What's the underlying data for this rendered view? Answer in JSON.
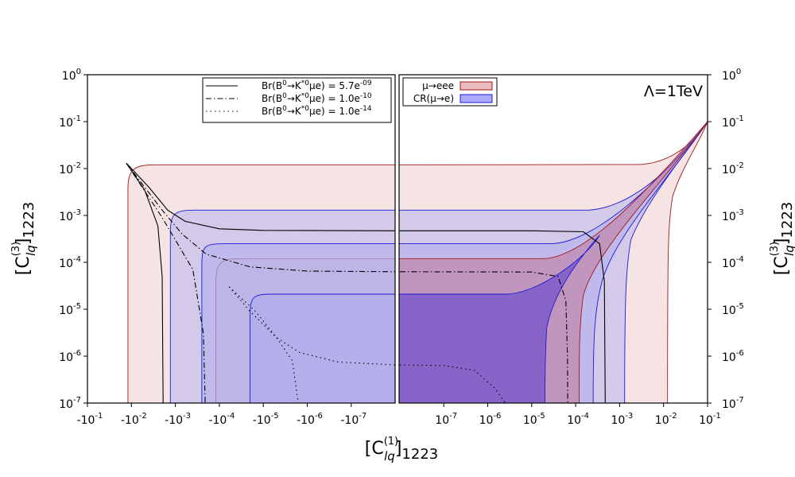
{
  "chart_data": {
    "type": "area",
    "annotation": "Λ=1TeV",
    "xlabel": {
      "main": "[C",
      "sup": "(1)",
      "sub": "lq",
      "tail": "]",
      "sub2": "1223"
    },
    "ylabel": {
      "main": "[C",
      "sup": "(3)",
      "sub": "lq",
      "tail": "]",
      "sub2": "1223"
    },
    "y_scale": "log",
    "ylim": [
      1e-07,
      1
    ],
    "x_scale": "symmetric-log (negative panel | positive panel)",
    "xlim_left_panel": [
      -0.1,
      -1e-08
    ],
    "xlim_right_panel": [
      1e-08,
      0.1
    ],
    "y_ticks": [
      {
        "base": "10",
        "exp": "0",
        "value": 1
      },
      {
        "base": "10",
        "exp": "-1",
        "value": 0.1
      },
      {
        "base": "10",
        "exp": "-2",
        "value": 0.01
      },
      {
        "base": "10",
        "exp": "-3",
        "value": 0.001
      },
      {
        "base": "10",
        "exp": "-4",
        "value": 0.0001
      },
      {
        "base": "10",
        "exp": "-5",
        "value": 1e-05
      },
      {
        "base": "10",
        "exp": "-6",
        "value": 1e-06
      },
      {
        "base": "10",
        "exp": "-7",
        "value": 1e-07
      }
    ],
    "x_ticks_left": [
      {
        "base": "-10",
        "exp": "-1",
        "value": -0.1
      },
      {
        "base": "-10",
        "exp": "-2",
        "value": -0.01
      },
      {
        "base": "-10",
        "exp": "-3",
        "value": -0.001
      },
      {
        "base": "-10",
        "exp": "-4",
        "value": -0.0001
      },
      {
        "base": "-10",
        "exp": "-5",
        "value": -1e-05
      },
      {
        "base": "-10",
        "exp": "-6",
        "value": -1e-06
      },
      {
        "base": "-10",
        "exp": "-7",
        "value": -1e-07
      }
    ],
    "x_ticks_right": [
      {
        "base": "10",
        "exp": "-7",
        "value": 1e-07
      },
      {
        "base": "10",
        "exp": "-6",
        "value": 1e-06
      },
      {
        "base": "10",
        "exp": "-5",
        "value": 1e-05
      },
      {
        "base": "10",
        "exp": "-4",
        "value": 0.0001
      },
      {
        "base": "10",
        "exp": "-3",
        "value": 0.001
      },
      {
        "base": "10",
        "exp": "-2",
        "value": 0.01
      },
      {
        "base": "10",
        "exp": "-1",
        "value": 0.1
      }
    ],
    "regions": [
      {
        "name": "μ→eee",
        "fill": "#e8bcbc",
        "stroke": "#a01818",
        "opacity": 0.4,
        "bands": [
          {
            "x_edge": 0.012,
            "y_plateau": 0.012,
            "corner_x": 0.007,
            "corner_y": 0.0095
          },
          {
            "x_edge": 0.00012,
            "y_plateau": 0.00012,
            "corner_x": 8e-05,
            "corner_y": 9e-05
          }
        ],
        "right_edge_points": [
          [
            0.0123,
            1e-07
          ],
          [
            0.013,
            0.0005
          ],
          [
            0.02,
            0.004
          ],
          [
            0.05,
            0.02
          ],
          [
            0.1,
            0.1
          ]
        ],
        "right_plateau_end": [
          [
            0.004,
            0.013
          ],
          [
            0.03,
            0.03
          ],
          [
            0.1,
            0.1
          ]
        ]
      },
      {
        "name": "CR(μ→e)",
        "fill": "#a8a8f0",
        "stroke": "#1a1ad8",
        "opacity": 0.45,
        "bands": [
          {
            "x_edge": 0.0013,
            "y_plateau": 0.0013,
            "corner_x": 0.0009,
            "corner_y": 0.0011
          },
          {
            "x_edge": 0.00025,
            "y_plateau": 0.00025,
            "corner_x": 0.0002,
            "corner_y": 0.00021
          },
          {
            "x_edge": 2e-05,
            "y_plateau": 2.1e-05,
            "corner_x": 1.6e-05,
            "corner_y": 1.6e-05
          }
        ]
      }
    ],
    "lines": [
      {
        "name": "Br(B⁰→K*⁰μe) = 5.7e⁻⁰⁹",
        "style": "solid",
        "left": [
          [
            -0.013,
            0.013
          ],
          [
            -0.004,
            0.004
          ],
          [
            -0.0015,
            0.0013
          ],
          [
            -0.0006,
            0.00075
          ],
          [
            -0.0001,
            0.00052
          ],
          [
            -1e-05,
            0.00048
          ],
          [
            -1e-08,
            0.00047
          ]
        ],
        "left_branch": [
          [
            -0.013,
            0.013
          ],
          [
            -0.005,
            0.0035
          ],
          [
            -0.0025,
            0.0006
          ],
          [
            -0.002,
            5e-05
          ],
          [
            -0.0019,
            1e-07
          ]
        ],
        "right": [
          [
            1e-08,
            0.00047
          ],
          [
            1e-05,
            0.00047
          ],
          [
            0.00015,
            0.00045
          ],
          [
            0.00035,
            0.00025
          ],
          [
            0.00045,
            4e-05
          ],
          [
            0.00047,
            1e-07
          ]
        ]
      },
      {
        "name": "Br(B⁰→K*⁰μe) = 1.0e⁻¹⁰",
        "style": "dashdot",
        "left": [
          [
            -0.013,
            0.013
          ],
          [
            -0.002,
            0.0013
          ],
          [
            -0.0007,
            0.0004
          ],
          [
            -0.0002,
            0.00015
          ],
          [
            -2e-05,
            8e-05
          ],
          [
            -1e-06,
            6.5e-05
          ],
          [
            -1e-08,
            6.3e-05
          ]
        ],
        "left_branch": [
          [
            -0.013,
            0.013
          ],
          [
            -0.002,
            0.0009
          ],
          [
            -0.0004,
            7e-05
          ],
          [
            -0.00023,
            3e-06
          ],
          [
            -0.00021,
            1e-07
          ]
        ],
        "right": [
          [
            1e-08,
            6.3e-05
          ],
          [
            1e-05,
            6.2e-05
          ],
          [
            4e-05,
            5e-05
          ],
          [
            6e-05,
            1.5e-05
          ],
          [
            6.5e-05,
            1e-06
          ],
          [
            6.6e-05,
            1e-07
          ]
        ]
      },
      {
        "name": "Br(B⁰→K*⁰μe) = 1.0e⁻¹⁴",
        "style": "dotted",
        "left": [
          [
            -6e-05,
            3e-05
          ],
          [
            -2e-05,
            9e-06
          ],
          [
            -5e-06,
            2.5e-06
          ],
          [
            -1.5e-06,
            1.2e-06
          ],
          [
            -2e-07,
            7.5e-07
          ],
          [
            -1e-08,
            6.5e-07
          ]
        ],
        "left_branch": [
          [
            -6e-05,
            3e-05
          ],
          [
            -1.5e-05,
            9e-06
          ],
          [
            -5e-06,
            2.5e-06
          ],
          [
            -2.2e-06,
            8e-07
          ],
          [
            -1.6e-06,
            1e-07
          ]
        ],
        "right": [
          [
            1e-08,
            6.5e-07
          ],
          [
            1e-07,
            6.3e-07
          ],
          [
            5e-07,
            5e-07
          ],
          [
            1.5e-06,
            2e-07
          ],
          [
            2.5e-06,
            1e-07
          ]
        ]
      }
    ],
    "legend_br": {
      "placement": "top-left of left panel (upper right corner)",
      "entries": [
        {
          "style": "solid",
          "label": "Br(B",
          "sup0": "0",
          "mid": "→K",
          "sup1": "*0",
          "after": "μe) = 5.7e",
          "sup2": "-09"
        },
        {
          "style": "dashdot",
          "label": "Br(B",
          "sup0": "0",
          "mid": "→K",
          "sup1": "*0",
          "after": "μe) = 1.0e",
          "sup2": "-10"
        },
        {
          "style": "dotted",
          "label": "Br(B",
          "sup0": "0",
          "mid": "→K",
          "sup1": "*0",
          "after": "μe) = 1.0e",
          "sup2": "-14"
        }
      ]
    },
    "legend_regions": {
      "placement": "top-left of right panel",
      "entries": [
        {
          "label": "μ→eee",
          "fill": "#e8bcbc",
          "stroke": "#a01818"
        },
        {
          "label": "CR(μ→e)",
          "fill": "#aaaaf8",
          "stroke": "#1a1ad8"
        }
      ]
    }
  }
}
